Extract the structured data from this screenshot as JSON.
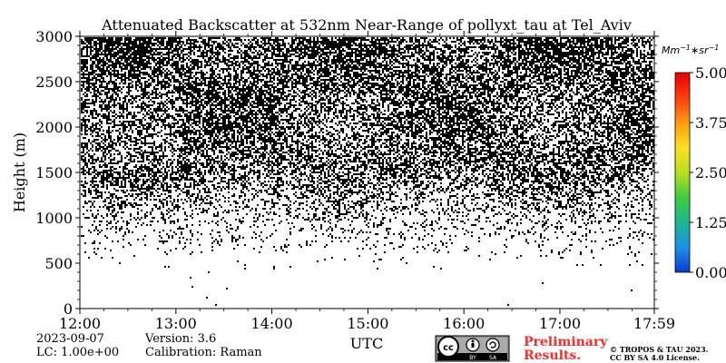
{
  "chart_data": {
    "type": "heatmap",
    "title": "Attenuated Backscatter at 532nm Near-Range of pollyxt_tau at Tel_Aviv",
    "xlabel": "UTC",
    "ylabel": "Height (m)",
    "x_ticks": [
      "12:00",
      "13:00",
      "14:00",
      "15:00",
      "16:00",
      "17:00",
      "17:59"
    ],
    "x_range_hours": [
      12.0,
      17.983
    ],
    "y_ticks": [
      0,
      500,
      1000,
      1500,
      2000,
      2500,
      3000
    ],
    "ylim": [
      0,
      3000
    ],
    "colorbar": {
      "unit": "Mm^-1*sr^-1",
      "ticks": [
        "0.00",
        "1.25",
        "2.50",
        "3.75",
        "5.00"
      ],
      "range": [
        0.0,
        5.0
      ],
      "colormap": [
        "#0b3fcf",
        "#1e90e6",
        "#19b890",
        "#3fcc3f",
        "#b8e020",
        "#ffe020",
        "#ff9a10",
        "#ff3b10",
        "#e60000"
      ]
    },
    "data_description_values": {
      "signal_color": "#000000",
      "noise_onset_height_m": 600,
      "dense_noise_height_m": 1500
    }
  },
  "footer": {
    "date": "2023-09-07",
    "version": "Version: 3.6",
    "lc": "LC: 1.00e+00",
    "calibration": "Calibration: Raman",
    "preliminary_line1": "Preliminary",
    "preliminary_line2": "Results.",
    "copyright_line1": "© TROPOS & TAU 2023.",
    "copyright_line2": "CC BY SA 4.0 License.",
    "preliminary_color": "#ff2a2a"
  },
  "license_badge": {
    "cc": "cc",
    "by": "BY",
    "sa": "SA"
  }
}
